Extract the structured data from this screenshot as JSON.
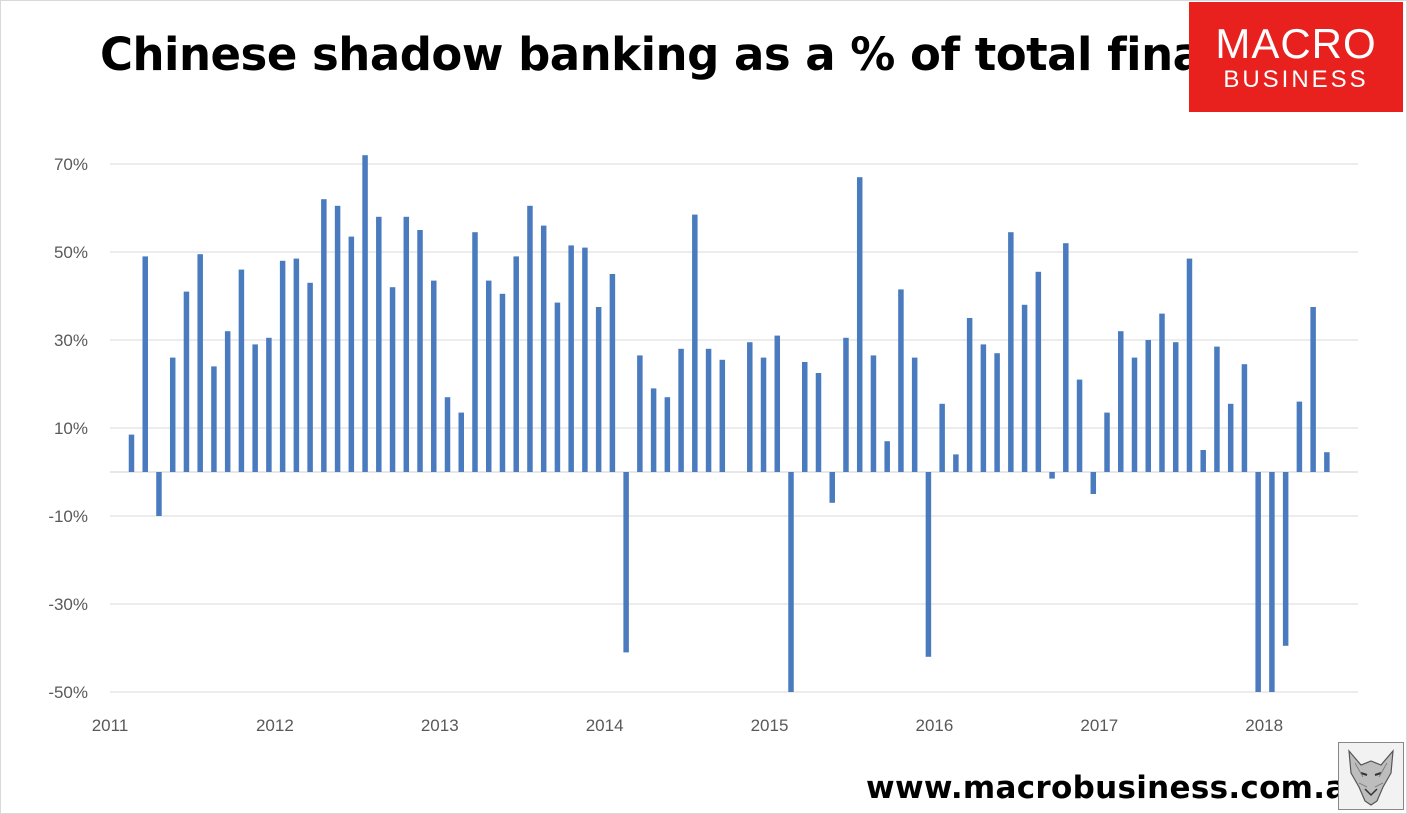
{
  "title": "Chinese shadow banking as a % of total finance",
  "logo": {
    "top_text": "MACRO",
    "bottom_text": "BUSINESS",
    "color": "#e8211f"
  },
  "footer": {
    "url": "www.macrobusiness.com.au",
    "mascot_icon": "wolf-head-icon"
  },
  "chart_data": {
    "type": "bar",
    "title": "Chinese shadow banking as a % of total finance",
    "xlabel": "",
    "ylabel": "",
    "ylim": [
      -50,
      80
    ],
    "yticks": [
      "70%",
      "50%",
      "30%",
      "10%",
      "-10%",
      "-30%",
      "-50%"
    ],
    "ytick_values": [
      70,
      50,
      30,
      10,
      -10,
      -30,
      -50
    ],
    "xticks": [
      "2011",
      "2012",
      "2013",
      "2014",
      "2015",
      "2016",
      "2017",
      "2018"
    ],
    "x_start": "2011-01",
    "x_end": "2018-05",
    "grid": true,
    "legend": "none",
    "bar_color": "#4a7bbf",
    "series": [
      {
        "values": [
          {
            "x": "2011-02",
            "y": 8.5
          },
          {
            "x": "2011-03",
            "y": 49
          },
          {
            "x": "2011-04",
            "y": -10
          },
          {
            "x": "2011-05",
            "y": 26
          },
          {
            "x": "2011-06",
            "y": 41
          },
          {
            "x": "2011-07",
            "y": 49.5
          },
          {
            "x": "2011-08",
            "y": 24
          },
          {
            "x": "2011-09",
            "y": 32
          },
          {
            "x": "2011-10",
            "y": 46
          },
          {
            "x": "2011-11",
            "y": 29
          },
          {
            "x": "2011-12",
            "y": 30.5
          },
          {
            "x": "2012-01",
            "y": 48
          },
          {
            "x": "2012-02",
            "y": 48.5
          },
          {
            "x": "2012-03",
            "y": 43
          },
          {
            "x": "2012-04",
            "y": 62
          },
          {
            "x": "2012-05",
            "y": 60.5
          },
          {
            "x": "2012-06",
            "y": 53.5
          },
          {
            "x": "2012-07",
            "y": 72
          },
          {
            "x": "2012-08",
            "y": 58
          },
          {
            "x": "2012-09",
            "y": 42
          },
          {
            "x": "2012-10",
            "y": 58
          },
          {
            "x": "2012-11",
            "y": 55
          },
          {
            "x": "2012-12",
            "y": 43.5
          },
          {
            "x": "2013-01",
            "y": 17
          },
          {
            "x": "2013-02",
            "y": 13.5
          },
          {
            "x": "2013-03",
            "y": 54.5
          },
          {
            "x": "2013-04",
            "y": 43.5
          },
          {
            "x": "2013-05",
            "y": 40.5
          },
          {
            "x": "2013-06",
            "y": 49
          },
          {
            "x": "2013-07",
            "y": 60.5
          },
          {
            "x": "2013-08",
            "y": 56
          },
          {
            "x": "2013-09",
            "y": 38.5
          },
          {
            "x": "2013-10",
            "y": 51.5
          },
          {
            "x": "2013-11",
            "y": 51
          },
          {
            "x": "2013-12",
            "y": 37.5
          },
          {
            "x": "2014-01",
            "y": 45
          },
          {
            "x": "2014-02",
            "y": -41
          },
          {
            "x": "2014-03",
            "y": 26.5
          },
          {
            "x": "2014-04",
            "y": 19
          },
          {
            "x": "2014-05",
            "y": 17
          },
          {
            "x": "2014-06",
            "y": 28
          },
          {
            "x": "2014-07",
            "y": 58.5
          },
          {
            "x": "2014-08",
            "y": 28
          },
          {
            "x": "2014-09",
            "y": 25.5
          },
          {
            "x": "2014-11",
            "y": 29.5
          },
          {
            "x": "2014-12",
            "y": 26
          },
          {
            "x": "2015-01",
            "y": 31
          },
          {
            "x": "2015-02",
            "y": -50
          },
          {
            "x": "2015-03",
            "y": 25
          },
          {
            "x": "2015-04",
            "y": 22.5
          },
          {
            "x": "2015-05",
            "y": -7
          },
          {
            "x": "2015-06",
            "y": 30.5
          },
          {
            "x": "2015-07",
            "y": 67
          },
          {
            "x": "2015-08",
            "y": 26.5
          },
          {
            "x": "2015-09",
            "y": 7
          },
          {
            "x": "2015-10",
            "y": 41.5
          },
          {
            "x": "2015-11",
            "y": 26
          },
          {
            "x": "2015-12",
            "y": -42
          },
          {
            "x": "2016-01",
            "y": 15.5
          },
          {
            "x": "2016-02",
            "y": 4
          },
          {
            "x": "2016-03",
            "y": 35
          },
          {
            "x": "2016-04",
            "y": 29
          },
          {
            "x": "2016-05",
            "y": 27
          },
          {
            "x": "2016-06",
            "y": 54.5
          },
          {
            "x": "2016-07",
            "y": 38
          },
          {
            "x": "2016-08",
            "y": 45.5
          },
          {
            "x": "2016-09",
            "y": -1.5
          },
          {
            "x": "2016-10",
            "y": 52
          },
          {
            "x": "2016-11",
            "y": 21
          },
          {
            "x": "2016-12",
            "y": -5
          },
          {
            "x": "2017-01",
            "y": 13.5
          },
          {
            "x": "2017-02",
            "y": 32
          },
          {
            "x": "2017-03",
            "y": 26
          },
          {
            "x": "2017-04",
            "y": 30
          },
          {
            "x": "2017-05",
            "y": 36
          },
          {
            "x": "2017-06",
            "y": 29.5
          },
          {
            "x": "2017-07",
            "y": 48.5
          },
          {
            "x": "2017-08",
            "y": 5
          },
          {
            "x": "2017-09",
            "y": 28.5
          },
          {
            "x": "2017-10",
            "y": 15.5
          },
          {
            "x": "2017-11",
            "y": 24.5
          },
          {
            "x": "2017-12",
            "y": -50
          },
          {
            "x": "2018-01",
            "y": -50
          },
          {
            "x": "2018-02",
            "y": -39.5
          },
          {
            "x": "2018-03",
            "y": 16
          },
          {
            "x": "2018-04",
            "y": 37.5
          },
          {
            "x": "2018-05",
            "y": 4.5
          }
        ]
      }
    ]
  }
}
